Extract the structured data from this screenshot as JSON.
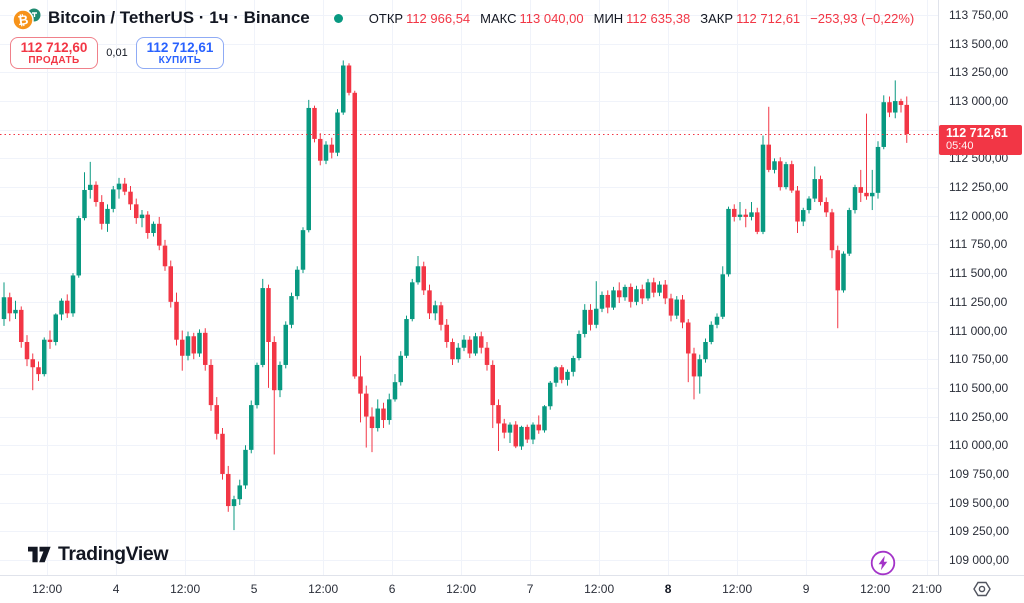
{
  "header": {
    "title": "Bitcoin / TetherUS · 1ч · Binance",
    "legend": {
      "open_label": "ОТКР",
      "open_value": "112 966,54",
      "high_label": "МАКС",
      "high_value": "113 040,00",
      "low_label": "МИН",
      "low_value": "112 635,38",
      "close_label": "ЗАКР",
      "close_value": "112 712,61",
      "change_value": "−253,93 (−0,22%)"
    },
    "sell": {
      "price": "112 712,60",
      "label": "ПРОДАТЬ"
    },
    "spread": "0,01",
    "buy": {
      "price": "112 712,61",
      "label": "КУПИТЬ"
    }
  },
  "price_line_badge": {
    "price": "112 712,61",
    "countdown": "05:40"
  },
  "watermark_text": "TradingView",
  "colors": {
    "up": "#089981",
    "down": "#f23645",
    "buy_accent": "#2962ff",
    "sell_accent": "#f23645",
    "grid": "#f0f3fa",
    "axis_border": "#e0e3eb",
    "text": "#131722",
    "status_dot": "#089981",
    "lightning": "#a333c8",
    "btc_orange": "#f7931a",
    "usdt_teal": "#1f8a70",
    "price_line": "#f23645",
    "badge_bg": "#f23645"
  },
  "chart_data": {
    "type": "candlestick",
    "title": "Bitcoin / TetherUS",
    "interval": "1ч",
    "exchange": "Binance",
    "last_price": 112712.61,
    "last_candle": {
      "open": 112966.54,
      "high": 113040.0,
      "low": 112635.38,
      "close": 112712.61
    },
    "change": {
      "abs": -253.93,
      "pct": -0.22
    },
    "price_axis": {
      "tick_step": 250,
      "ticks": [
        {
          "v": 113750,
          "label": "113 750,00"
        },
        {
          "v": 113500,
          "label": "113 500,00"
        },
        {
          "v": 113250,
          "label": "113 250,00"
        },
        {
          "v": 113000,
          "label": "113 000,00"
        },
        {
          "v": 112750,
          "label": "112 750,00"
        },
        {
          "v": 112500,
          "label": "112 500,00"
        },
        {
          "v": 112250,
          "label": "112 250,00"
        },
        {
          "v": 112000,
          "label": "112 000,00"
        },
        {
          "v": 111750,
          "label": "111 750,00"
        },
        {
          "v": 111500,
          "label": "111 500,00"
        },
        {
          "v": 111250,
          "label": "111 250,00"
        },
        {
          "v": 111000,
          "label": "111 000,00"
        },
        {
          "v": 110750,
          "label": "110 750,00"
        },
        {
          "v": 110500,
          "label": "110 500,00"
        },
        {
          "v": 110250,
          "label": "110 250,00"
        },
        {
          "v": 110000,
          "label": "110 000,00"
        },
        {
          "v": 109750,
          "label": "109 750,00"
        },
        {
          "v": 109500,
          "label": "109 500,00"
        },
        {
          "v": 109250,
          "label": "109 250,00"
        },
        {
          "v": 109000,
          "label": "109 000,00"
        }
      ]
    },
    "time_axis": {
      "ticks": [
        {
          "label": "12:00",
          "i": 7.5
        },
        {
          "label": "4",
          "i": 19.5
        },
        {
          "label": "12:00",
          "i": 31.5
        },
        {
          "label": "5",
          "i": 43.5
        },
        {
          "label": "12:00",
          "i": 55.5
        },
        {
          "label": "6",
          "i": 67.5
        },
        {
          "label": "12:00",
          "i": 79.5
        },
        {
          "label": "7",
          "i": 91.5
        },
        {
          "label": "12:00",
          "i": 103.5
        },
        {
          "label": "8",
          "i": 115.5,
          "bold": true
        },
        {
          "label": "12:00",
          "i": 127.5
        },
        {
          "label": "9",
          "i": 139.5
        },
        {
          "label": "12:00",
          "i": 151.5
        },
        {
          "label": "21:00",
          "i": 160.5
        }
      ]
    },
    "candles": [
      [
        111100,
        111420,
        111040,
        111290
      ],
      [
        111290,
        111330,
        111080,
        111150
      ],
      [
        111150,
        111260,
        111100,
        111180
      ],
      [
        111180,
        111210,
        110850,
        110900
      ],
      [
        110900,
        110960,
        110690,
        110750
      ],
      [
        110750,
        110800,
        110480,
        110680
      ],
      [
        110680,
        110730,
        110560,
        110620
      ],
      [
        110620,
        110940,
        110600,
        110920
      ],
      [
        110920,
        111000,
        110840,
        110900
      ],
      [
        110900,
        111150,
        110870,
        111140
      ],
      [
        111140,
        111280,
        111090,
        111260
      ],
      [
        111260,
        111315,
        111110,
        111150
      ],
      [
        111150,
        111500,
        111120,
        111480
      ],
      [
        111480,
        112000,
        111460,
        111980
      ],
      [
        111980,
        112380,
        111960,
        112225
      ],
      [
        112225,
        112470,
        112150,
        112270
      ],
      [
        112270,
        112300,
        112080,
        112120
      ],
      [
        112120,
        112180,
        111880,
        111930
      ],
      [
        111930,
        112100,
        111860,
        112060
      ],
      [
        112060,
        112260,
        112030,
        112230
      ],
      [
        112230,
        112330,
        112150,
        112280
      ],
      [
        112280,
        112330,
        112180,
        112210
      ],
      [
        112210,
        112260,
        112050,
        112100
      ],
      [
        112100,
        112150,
        111930,
        111980
      ],
      [
        111980,
        112050,
        111900,
        112010
      ],
      [
        112010,
        112040,
        111800,
        111850
      ],
      [
        111850,
        111950,
        111820,
        111930
      ],
      [
        111930,
        111990,
        111700,
        111740
      ],
      [
        111740,
        111790,
        111520,
        111560
      ],
      [
        111560,
        111610,
        111200,
        111250
      ],
      [
        111250,
        111330,
        110870,
        110920
      ],
      [
        110920,
        111000,
        110650,
        110780
      ],
      [
        110780,
        110990,
        110740,
        110950
      ],
      [
        110950,
        110980,
        110750,
        110800
      ],
      [
        110800,
        111010,
        110770,
        110980
      ],
      [
        110980,
        111020,
        110650,
        110700
      ],
      [
        110700,
        110750,
        110300,
        110350
      ],
      [
        110350,
        110420,
        110050,
        110100
      ],
      [
        110100,
        110150,
        109700,
        109750
      ],
      [
        109750,
        109820,
        109420,
        109470
      ],
      [
        109470,
        109560,
        109260,
        109530
      ],
      [
        109530,
        109700,
        109480,
        109650
      ],
      [
        109650,
        110000,
        109620,
        109960
      ],
      [
        109960,
        110390,
        109930,
        110350
      ],
      [
        110350,
        110720,
        110320,
        110700
      ],
      [
        110700,
        111450,
        110680,
        111370
      ],
      [
        111370,
        111400,
        110500,
        110900
      ],
      [
        110900,
        110950,
        109920,
        110480
      ],
      [
        110480,
        110730,
        110420,
        110700
      ],
      [
        110700,
        111080,
        110670,
        111050
      ],
      [
        111050,
        111330,
        111020,
        111300
      ],
      [
        111300,
        111560,
        111270,
        111530
      ],
      [
        111530,
        111900,
        111500,
        111875
      ],
      [
        111875,
        113010,
        111855,
        112940
      ],
      [
        112940,
        112960,
        112640,
        112670
      ],
      [
        112670,
        112720,
        112440,
        112480
      ],
      [
        112480,
        112650,
        112450,
        112620
      ],
      [
        112620,
        112680,
        112500,
        112550
      ],
      [
        112550,
        112930,
        112520,
        112900
      ],
      [
        112900,
        113354,
        112880,
        113310
      ],
      [
        113310,
        113330,
        113050,
        113072
      ],
      [
        113072,
        113090,
        110580,
        110600
      ],
      [
        110600,
        110780,
        110200,
        110450
      ],
      [
        110450,
        110520,
        109980,
        110250
      ],
      [
        110250,
        110330,
        109940,
        110150
      ],
      [
        110150,
        110400,
        110120,
        110320
      ],
      [
        110320,
        110370,
        110150,
        110220
      ],
      [
        110220,
        110450,
        110180,
        110400
      ],
      [
        110400,
        110620,
        110380,
        110550
      ],
      [
        110550,
        110820,
        110520,
        110780
      ],
      [
        110780,
        111130,
        110760,
        111100
      ],
      [
        111100,
        111450,
        111080,
        111420
      ],
      [
        111420,
        111650,
        111400,
        111560
      ],
      [
        111560,
        111600,
        111310,
        111350
      ],
      [
        111350,
        111400,
        111100,
        111150
      ],
      [
        111150,
        111260,
        111090,
        111220
      ],
      [
        111220,
        111250,
        111000,
        111050
      ],
      [
        111050,
        111100,
        110850,
        110900
      ],
      [
        110900,
        110930,
        110700,
        110750
      ],
      [
        110750,
        110890,
        110720,
        110850
      ],
      [
        110850,
        110960,
        110820,
        110920
      ],
      [
        110920,
        110950,
        110760,
        110800
      ],
      [
        110800,
        110980,
        110780,
        110950
      ],
      [
        110950,
        110990,
        110800,
        110850
      ],
      [
        110850,
        110900,
        110650,
        110700
      ],
      [
        110700,
        110740,
        110150,
        110350
      ],
      [
        110350,
        110400,
        109950,
        110190
      ],
      [
        110190,
        110230,
        110060,
        110110
      ],
      [
        110110,
        110200,
        110020,
        110180
      ],
      [
        110180,
        110210,
        109975,
        109990
      ],
      [
        109990,
        110170,
        109960,
        110160
      ],
      [
        110160,
        110180,
        110020,
        110050
      ],
      [
        110050,
        110200,
        110010,
        110180
      ],
      [
        110180,
        110260,
        110100,
        110130
      ],
      [
        110130,
        110350,
        110110,
        110340
      ],
      [
        110340,
        110560,
        110310,
        110545
      ],
      [
        110545,
        110690,
        110510,
        110680
      ],
      [
        110680,
        110700,
        110540,
        110570
      ],
      [
        110570,
        110660,
        110520,
        110640
      ],
      [
        110640,
        110780,
        110600,
        110760
      ],
      [
        110760,
        111000,
        110740,
        110970
      ],
      [
        110970,
        111230,
        110940,
        111180
      ],
      [
        111180,
        111230,
        111000,
        111050
      ],
      [
        111050,
        111430,
        111020,
        111190
      ],
      [
        111190,
        111340,
        111160,
        111310
      ],
      [
        111310,
        111350,
        111150,
        111200
      ],
      [
        111200,
        111380,
        111180,
        111350
      ],
      [
        111350,
        111420,
        111240,
        111290
      ],
      [
        111290,
        111400,
        111260,
        111380
      ],
      [
        111380,
        111410,
        111200,
        111250
      ],
      [
        111250,
        111390,
        111220,
        111360
      ],
      [
        111360,
        111400,
        111230,
        111280
      ],
      [
        111280,
        111450,
        111260,
        111420
      ],
      [
        111420,
        111460,
        111290,
        111330
      ],
      [
        111330,
        111430,
        111300,
        111400
      ],
      [
        111400,
        111440,
        111230,
        111280
      ],
      [
        111280,
        111320,
        111080,
        111130
      ],
      [
        111130,
        111300,
        111100,
        111270
      ],
      [
        111270,
        111310,
        111020,
        111070
      ],
      [
        111070,
        111100,
        110550,
        110800
      ],
      [
        110800,
        110850,
        110400,
        110600
      ],
      [
        110600,
        110790,
        110450,
        110750
      ],
      [
        110750,
        110930,
        110720,
        110900
      ],
      [
        110900,
        111080,
        110880,
        111050
      ],
      [
        111050,
        111150,
        111020,
        111120
      ],
      [
        111120,
        111560,
        111100,
        111490
      ],
      [
        111490,
        112080,
        111470,
        112060
      ],
      [
        112060,
        112100,
        111950,
        111990
      ],
      [
        111990,
        112120,
        111960,
        112010
      ],
      [
        112010,
        112060,
        111900,
        111990
      ],
      [
        111990,
        112120,
        111960,
        112030
      ],
      [
        112030,
        112070,
        111840,
        111860
      ],
      [
        111860,
        112700,
        111840,
        112620
      ],
      [
        112620,
        112950,
        112380,
        112400
      ],
      [
        112400,
        112500,
        112370,
        112475
      ],
      [
        112475,
        112510,
        112220,
        112250
      ],
      [
        112250,
        112470,
        112230,
        112450
      ],
      [
        112450,
        112480,
        112200,
        112220
      ],
      [
        112220,
        112260,
        111850,
        111950
      ],
      [
        111950,
        112070,
        111910,
        112050
      ],
      [
        112050,
        112170,
        112020,
        112150
      ],
      [
        112150,
        112430,
        112120,
        112320
      ],
      [
        112320,
        112350,
        112090,
        112120
      ],
      [
        112120,
        112160,
        111990,
        112030
      ],
      [
        112030,
        112060,
        111630,
        111700
      ],
      [
        111700,
        111740,
        111020,
        111350
      ],
      [
        111350,
        111690,
        111330,
        111670
      ],
      [
        111670,
        112070,
        111650,
        112050
      ],
      [
        112050,
        112270,
        112020,
        112250
      ],
      [
        112250,
        112400,
        112120,
        112200
      ],
      [
        112200,
        112890,
        112140,
        112170
      ],
      [
        112170,
        112400,
        112050,
        112200
      ],
      [
        112200,
        112650,
        112150,
        112600
      ],
      [
        112600,
        113050,
        112580,
        112990
      ],
      [
        112990,
        113040,
        112860,
        112900
      ],
      [
        112900,
        113180,
        112850,
        113000
      ],
      [
        113000,
        113020,
        112900,
        112966
      ],
      [
        112966.54,
        113040,
        112635.38,
        112712.61
      ]
    ]
  }
}
